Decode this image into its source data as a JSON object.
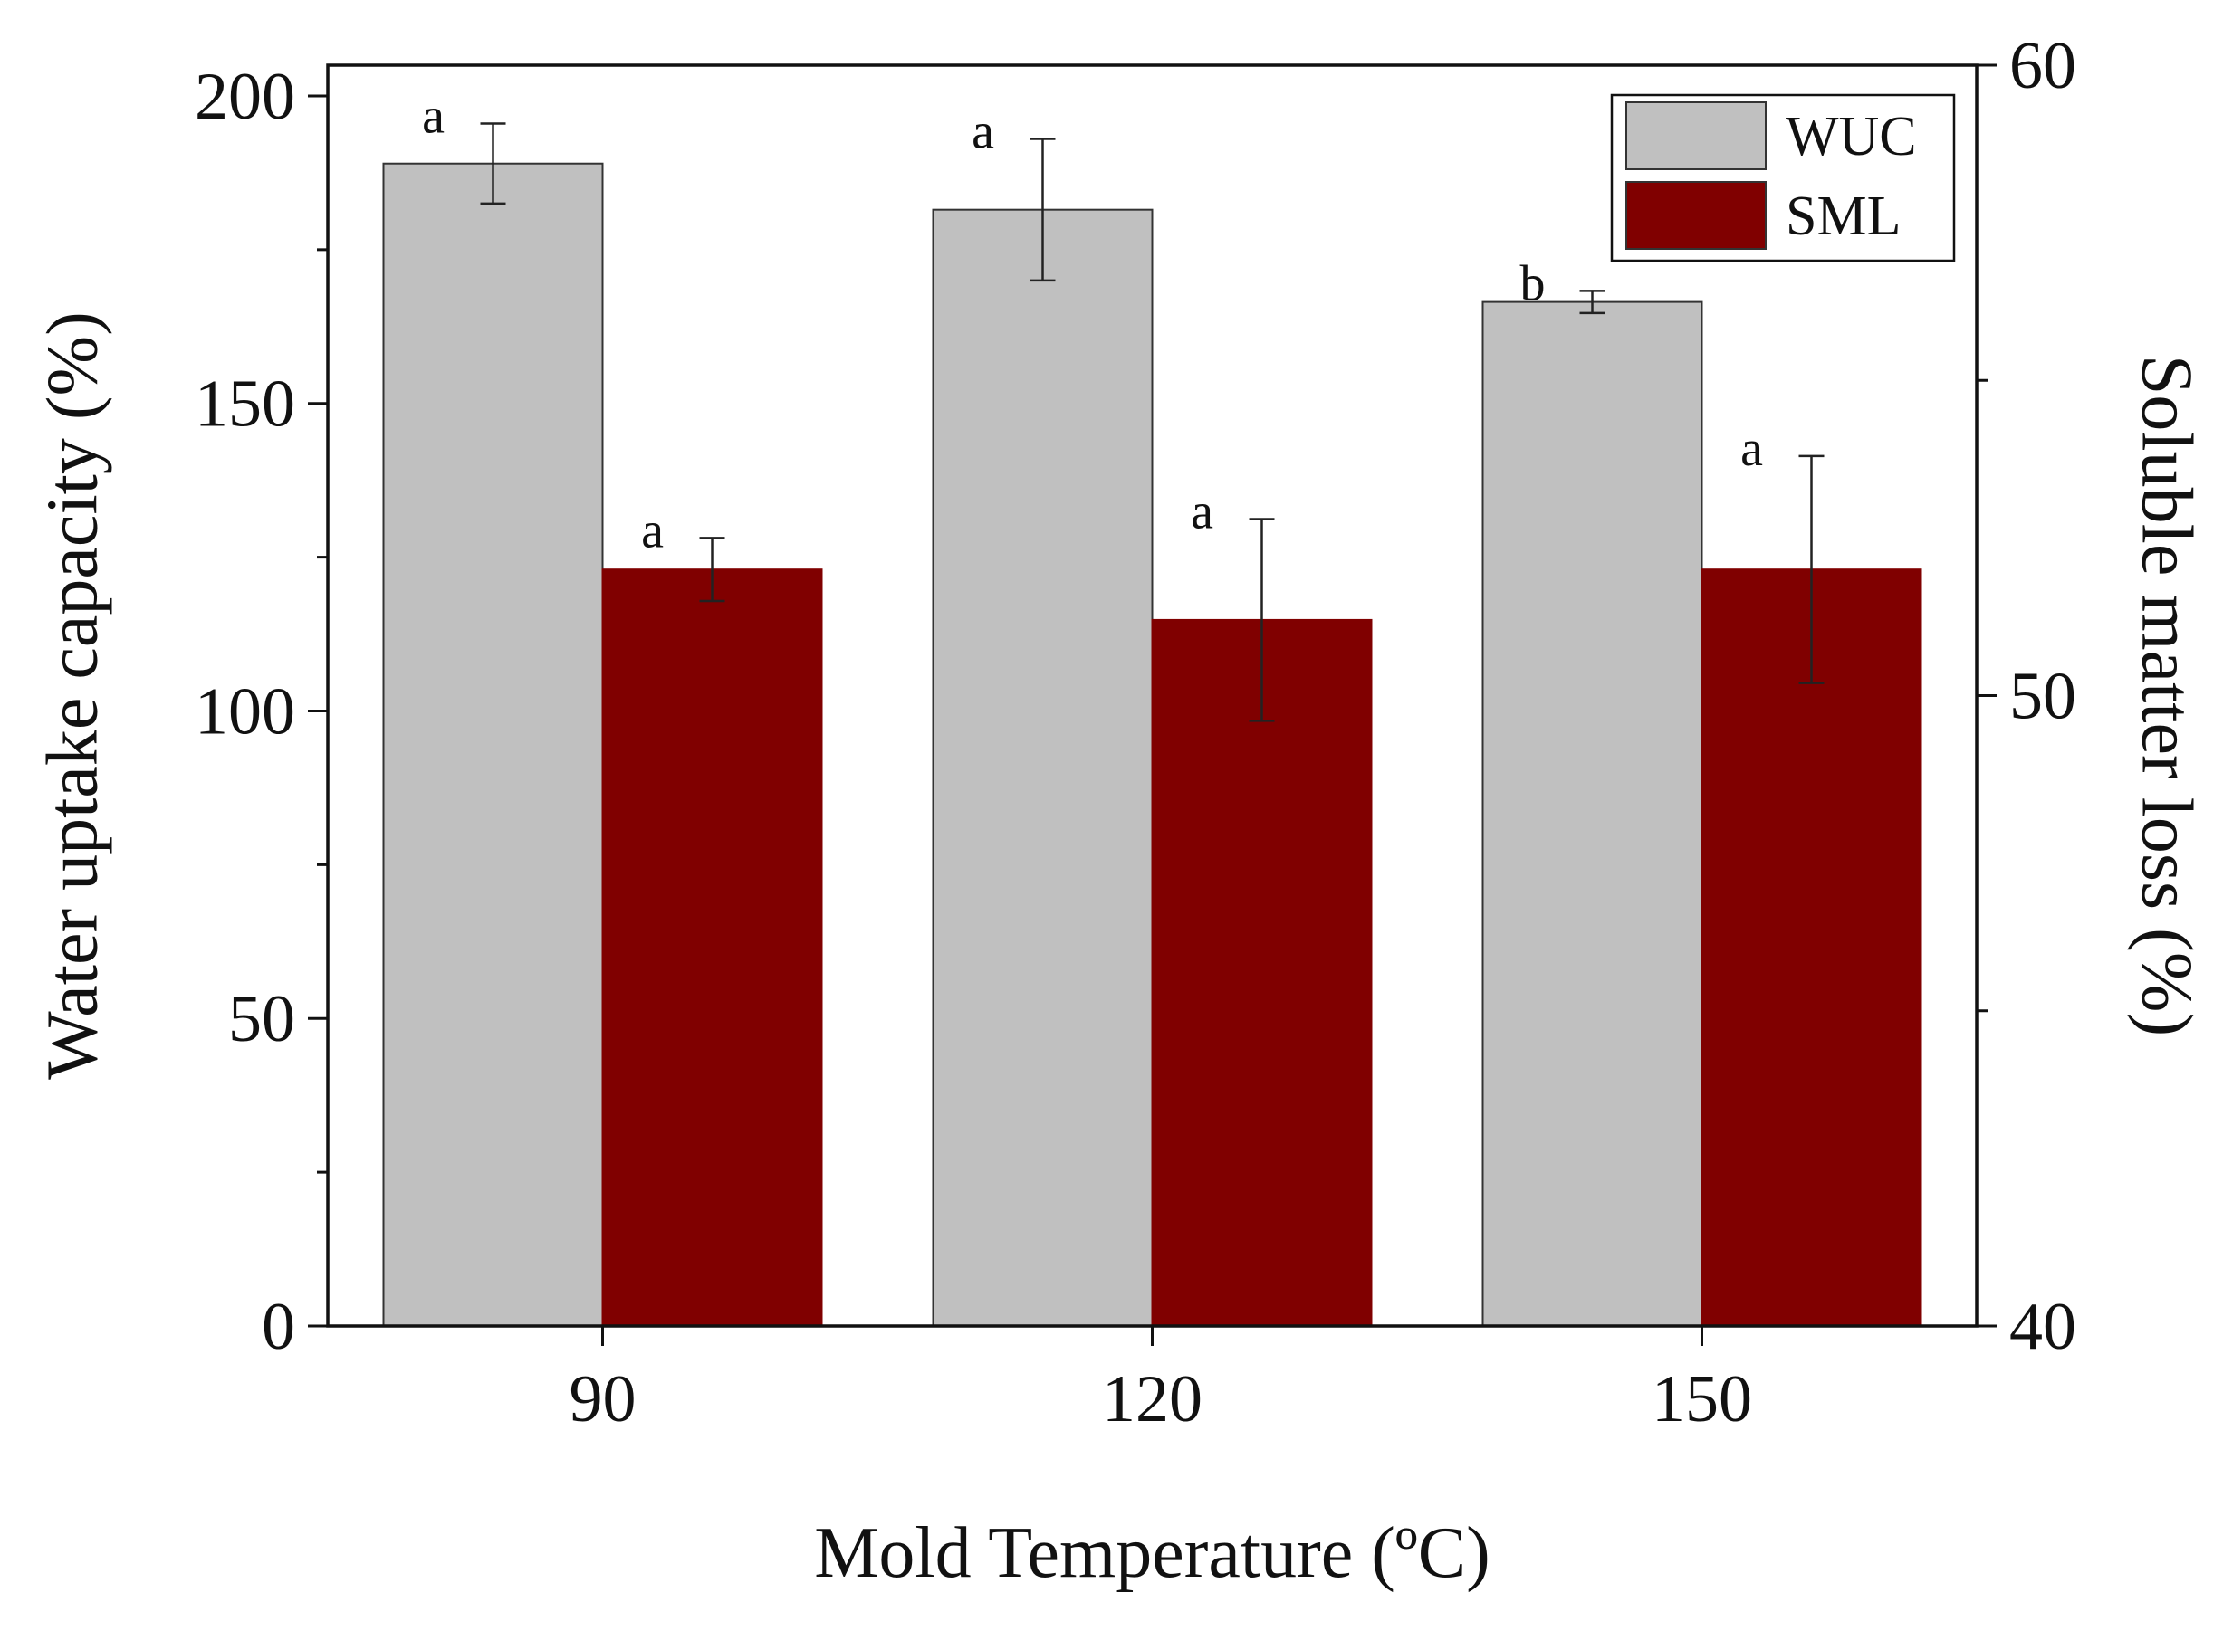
{
  "chart_data": {
    "type": "bar",
    "xlabel": "Mold Temperature (ºC)",
    "ylabel": "Water uptake capacity (%)",
    "y2label": "Soluble matter loss (%)",
    "categories": [
      "90",
      "120",
      "150"
    ],
    "ylim": [
      0,
      205
    ],
    "y2lim": [
      40,
      60
    ],
    "yticks": [
      0,
      50,
      100,
      150,
      200
    ],
    "y2ticks": [
      40,
      50,
      60
    ],
    "legend_position": "top-right",
    "series": [
      {
        "name": "WUC",
        "axis": "left",
        "color": "#c0c0c0",
        "values": [
          189,
          181.5,
          166.5
        ],
        "errors": [
          6.5,
          11.5,
          1.8
        ],
        "significance": [
          "a",
          "a",
          "b"
        ]
      },
      {
        "name": "SML",
        "axis": "right",
        "color": "#800000",
        "values": [
          52.0,
          51.2,
          52.0
        ],
        "errors": [
          0.5,
          1.6,
          1.8
        ],
        "significance": [
          "a",
          "a",
          "a"
        ]
      }
    ]
  }
}
